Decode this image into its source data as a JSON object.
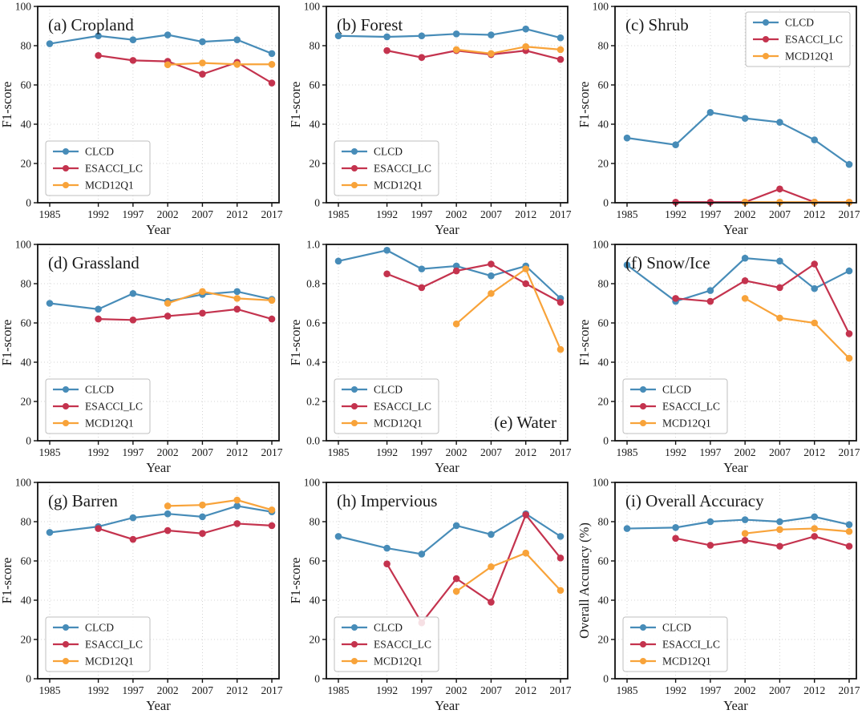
{
  "figure": {
    "xlabel": "Year",
    "years": [
      1985,
      1992,
      1997,
      2002,
      2007,
      2012,
      2017
    ],
    "series_names": [
      "CLCD",
      "ESACCI_LC",
      "MCD12Q1"
    ],
    "palette": {
      "CLCD": "#478cb8",
      "ESACCI_LC": "#c4334e",
      "MCD12Q1": "#f8a33a"
    },
    "grid_color": "#c9c9c9",
    "spine_color": "#111111",
    "text_color": "#1a1a1a"
  },
  "chart_data": [
    {
      "id": "a",
      "type": "line",
      "title": "(a) Cropland",
      "title_pos": "top-left",
      "legend_pos": "bottom-left",
      "legend_entries": [
        "CLCD",
        "ESACCI_LC",
        "MCD12Q1"
      ],
      "xlabel": "Year",
      "ylabel": "F1-score",
      "ylim": [
        0,
        100
      ],
      "yticks": [
        0,
        20,
        40,
        60,
        80,
        100
      ],
      "ytick_format": "int",
      "grid": true,
      "x": [
        1985,
        1992,
        1997,
        2002,
        2007,
        2012,
        2017
      ],
      "series": [
        {
          "name": "CLCD",
          "values": [
            81,
            85,
            83,
            85.5,
            82,
            83,
            76
          ]
        },
        {
          "name": "ESACCI_LC",
          "values": [
            null,
            75,
            72.5,
            72,
            65.5,
            71.5,
            61
          ]
        },
        {
          "name": "MCD12Q1",
          "values": [
            null,
            null,
            null,
            70.3,
            71.2,
            70.5,
            70.5
          ]
        }
      ]
    },
    {
      "id": "b",
      "type": "line",
      "title": "(b) Forest",
      "title_pos": "top-left",
      "legend_pos": "bottom-left",
      "legend_entries": [
        "CLCD",
        "ESACCI_LC",
        "MCD12Q1"
      ],
      "xlabel": "Year",
      "ylabel": "F1-score",
      "ylim": [
        0,
        100
      ],
      "yticks": [
        0,
        20,
        40,
        60,
        80,
        100
      ],
      "ytick_format": "int",
      "grid": true,
      "x": [
        1985,
        1992,
        1997,
        2002,
        2007,
        2012,
        2017
      ],
      "series": [
        {
          "name": "CLCD",
          "values": [
            85,
            84.5,
            85,
            86,
            85.5,
            88.5,
            84
          ]
        },
        {
          "name": "ESACCI_LC",
          "values": [
            null,
            77.5,
            74,
            77.5,
            75.5,
            77.5,
            73
          ]
        },
        {
          "name": "MCD12Q1",
          "values": [
            null,
            null,
            null,
            78,
            76,
            79.5,
            78
          ]
        }
      ]
    },
    {
      "id": "c",
      "type": "line",
      "title": "(c) Shrub",
      "title_pos": "top-left",
      "legend_pos": "top-right",
      "legend_entries": [
        "CLCD",
        "ESACCI_LC",
        "MCD12Q1"
      ],
      "xlabel": "Year",
      "ylabel": "F1-score",
      "ylim": [
        0,
        100
      ],
      "yticks": [
        0,
        20,
        40,
        60,
        80,
        100
      ],
      "ytick_format": "int",
      "grid": true,
      "x": [
        1985,
        1992,
        1997,
        2002,
        2007,
        2012,
        2017
      ],
      "series": [
        {
          "name": "CLCD",
          "values": [
            33,
            29.5,
            46,
            43,
            41,
            32,
            19.5
          ]
        },
        {
          "name": "ESACCI_LC",
          "values": [
            null,
            0.3,
            0.3,
            0.3,
            7,
            0.3,
            0.3
          ]
        },
        {
          "name": "MCD12Q1",
          "values": [
            null,
            null,
            null,
            0.3,
            0.3,
            0.3,
            0.3
          ]
        }
      ]
    },
    {
      "id": "d",
      "type": "line",
      "title": "(d) Grassland",
      "title_pos": "top-left",
      "legend_pos": "bottom-left",
      "legend_entries": [
        "CLCD",
        "ESACCI_LC",
        "MCD12Q1"
      ],
      "xlabel": "Year",
      "ylabel": "F1-score",
      "ylim": [
        0,
        100
      ],
      "yticks": [
        0,
        20,
        40,
        60,
        80,
        100
      ],
      "ytick_format": "int",
      "grid": true,
      "x": [
        1985,
        1992,
        1997,
        2002,
        2007,
        2012,
        2017
      ],
      "series": [
        {
          "name": "CLCD",
          "values": [
            70,
            67,
            75,
            71,
            74.5,
            76,
            72
          ]
        },
        {
          "name": "ESACCI_LC",
          "values": [
            null,
            62,
            61.5,
            63.5,
            65,
            67,
            62
          ]
        },
        {
          "name": "MCD12Q1",
          "values": [
            null,
            null,
            null,
            70,
            76,
            72.5,
            71.5
          ]
        }
      ]
    },
    {
      "id": "e",
      "type": "line",
      "title": "(e) Water",
      "title_pos": "bottom-right",
      "legend_pos": "bottom-left",
      "legend_entries": [
        "CLCD",
        "ESACCI_LC",
        "MCD12Q1"
      ],
      "xlabel": "Year",
      "ylabel": "F1-score",
      "ylim": [
        0,
        1
      ],
      "yticks": [
        0,
        0.2,
        0.4,
        0.6,
        0.8,
        1.0
      ],
      "ytick_format": "1dp",
      "grid": true,
      "x": [
        1985,
        1992,
        1997,
        2002,
        2007,
        2012,
        2017
      ],
      "series": [
        {
          "name": "CLCD",
          "values": [
            0.915,
            0.97,
            0.875,
            0.89,
            0.84,
            0.89,
            0.725
          ]
        },
        {
          "name": "ESACCI_LC",
          "values": [
            null,
            0.85,
            0.78,
            0.865,
            0.9,
            0.8,
            0.705
          ]
        },
        {
          "name": "MCD12Q1",
          "values": [
            null,
            null,
            null,
            0.595,
            0.75,
            0.875,
            0.465
          ]
        }
      ]
    },
    {
      "id": "f",
      "type": "line",
      "title": "(f) Snow/Ice",
      "title_pos": "top-left",
      "legend_pos": "bottom-left",
      "legend_entries": [
        "CLCD",
        "ESACCI_LC",
        "MCD12Q1"
      ],
      "xlabel": "Year",
      "ylabel": "F1-score",
      "ylim": [
        0,
        100
      ],
      "yticks": [
        0,
        20,
        40,
        60,
        80,
        100
      ],
      "ytick_format": "int",
      "grid": true,
      "x": [
        1985,
        1992,
        1997,
        2002,
        2007,
        2012,
        2017
      ],
      "series": [
        {
          "name": "CLCD",
          "values": [
            89.5,
            71,
            76.5,
            93,
            91.5,
            77.5,
            86.5
          ]
        },
        {
          "name": "ESACCI_LC",
          "values": [
            null,
            72.5,
            71,
            81.5,
            78,
            90,
            54.5
          ]
        },
        {
          "name": "MCD12Q1",
          "values": [
            null,
            null,
            null,
            72.5,
            62.5,
            60,
            42
          ]
        }
      ]
    },
    {
      "id": "g",
      "type": "line",
      "title": "(g) Barren",
      "title_pos": "top-left",
      "legend_pos": "bottom-left",
      "legend_entries": [
        "CLCD",
        "ESACCI_LC",
        "MCD12Q1"
      ],
      "xlabel": "Year",
      "ylabel": "F1-score",
      "ylim": [
        0,
        100
      ],
      "yticks": [
        0,
        20,
        40,
        60,
        80,
        100
      ],
      "ytick_format": "int",
      "grid": true,
      "x": [
        1985,
        1992,
        1997,
        2002,
        2007,
        2012,
        2017
      ],
      "series": [
        {
          "name": "CLCD",
          "values": [
            74.5,
            77.5,
            82,
            84,
            82.5,
            88,
            85
          ]
        },
        {
          "name": "ESACCI_LC",
          "values": [
            null,
            76.5,
            71,
            75.5,
            74,
            79,
            78
          ]
        },
        {
          "name": "MCD12Q1",
          "values": [
            null,
            null,
            null,
            88,
            88.5,
            91,
            86
          ]
        }
      ]
    },
    {
      "id": "h",
      "type": "line",
      "title": "(h) Impervious",
      "title_pos": "top-left",
      "legend_pos": "bottom-left",
      "legend_entries": [
        "CLCD",
        "ESACCI_LC",
        "MCD12Q1"
      ],
      "xlabel": "Year",
      "ylabel": "F1-score",
      "ylim": [
        0,
        100
      ],
      "yticks": [
        0,
        20,
        40,
        60,
        80,
        100
      ],
      "ytick_format": "int",
      "grid": true,
      "x": [
        1985,
        1992,
        1997,
        2002,
        2007,
        2012,
        2017
      ],
      "series": [
        {
          "name": "CLCD",
          "values": [
            72.5,
            66.5,
            63.5,
            78,
            73.5,
            84,
            72.5
          ]
        },
        {
          "name": "ESACCI_LC",
          "values": [
            null,
            58.5,
            28.5,
            51,
            39,
            83.5,
            61.5
          ]
        },
        {
          "name": "MCD12Q1",
          "values": [
            null,
            null,
            null,
            44.5,
            57,
            64,
            45
          ]
        }
      ]
    },
    {
      "id": "i",
      "type": "line",
      "title": "(i) Overall Accuracy",
      "title_pos": "top-left",
      "legend_pos": "bottom-left",
      "legend_entries": [
        "CLCD",
        "ESACCI_LC",
        "MCD12Q1"
      ],
      "xlabel": "Year",
      "ylabel": "Overall Accuracy (%)",
      "ylim": [
        0,
        100
      ],
      "yticks": [
        0,
        20,
        40,
        60,
        80,
        100
      ],
      "ytick_format": "int",
      "grid": true,
      "x": [
        1985,
        1992,
        1997,
        2002,
        2007,
        2012,
        2017
      ],
      "series": [
        {
          "name": "CLCD",
          "values": [
            76.5,
            77,
            80,
            81,
            80,
            82.5,
            78.5
          ]
        },
        {
          "name": "ESACCI_LC",
          "values": [
            null,
            71.5,
            68,
            70.5,
            67.5,
            72.5,
            67.5
          ]
        },
        {
          "name": "MCD12Q1",
          "values": [
            null,
            null,
            null,
            74,
            76,
            76.5,
            75
          ]
        }
      ]
    }
  ]
}
